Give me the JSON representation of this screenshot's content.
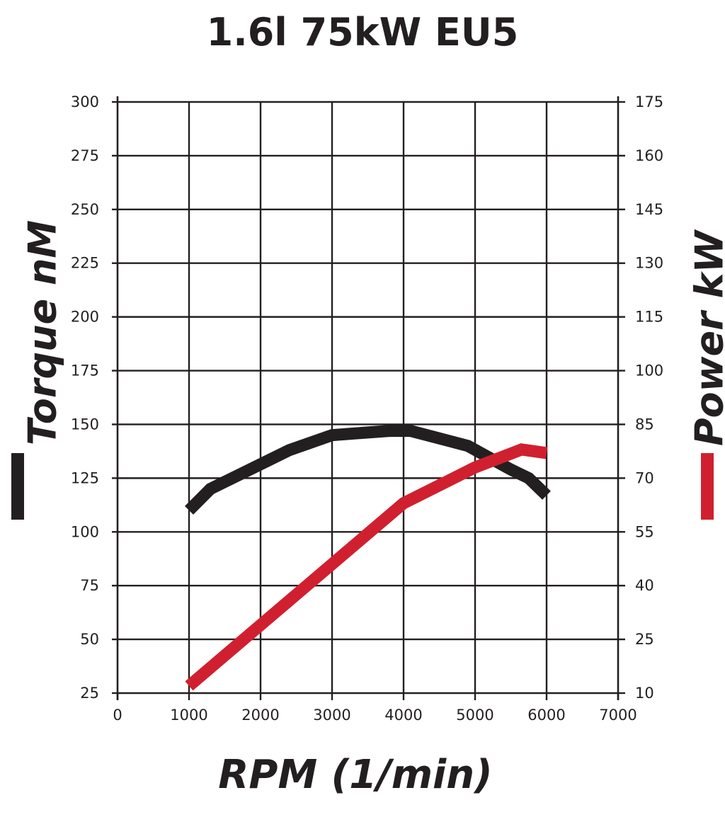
{
  "chart_data": {
    "type": "line",
    "title": "1.6l 75kW EU5",
    "xlabel": "RPM (1/min)",
    "ylabel_left": "Torque nM",
    "ylabel_right": "Power kW",
    "xlim": [
      0,
      7000
    ],
    "ylim_left": [
      25,
      300
    ],
    "ylim_right": [
      10,
      175
    ],
    "x_ticks": [
      0,
      1000,
      2000,
      3000,
      4000,
      5000,
      6000,
      7000
    ],
    "y_ticks_left": [
      25,
      50,
      75,
      100,
      125,
      150,
      175,
      200,
      225,
      250,
      275,
      300
    ],
    "y_ticks_right": [
      10,
      25,
      40,
      55,
      70,
      85,
      100,
      115,
      130,
      145,
      160,
      175
    ],
    "grid": true,
    "legend": "swatches beside axis labels",
    "series": [
      {
        "name": "Torque nM",
        "axis": "left",
        "color": "#231f20",
        "points": [
          [
            1000,
            110
          ],
          [
            1300,
            120
          ],
          [
            2400,
            138
          ],
          [
            3000,
            145
          ],
          [
            3800,
            147
          ],
          [
            4100,
            147
          ],
          [
            4900,
            140
          ],
          [
            5500,
            129
          ],
          [
            5750,
            125
          ],
          [
            6000,
            117
          ]
        ]
      },
      {
        "name": "Power kW",
        "axis": "right",
        "color": "#d0202f",
        "points": [
          [
            1000,
            12
          ],
          [
            2000,
            29
          ],
          [
            3000,
            46
          ],
          [
            4000,
            63
          ],
          [
            5000,
            73
          ],
          [
            5650,
            78
          ],
          [
            6000,
            77
          ]
        ]
      }
    ]
  }
}
